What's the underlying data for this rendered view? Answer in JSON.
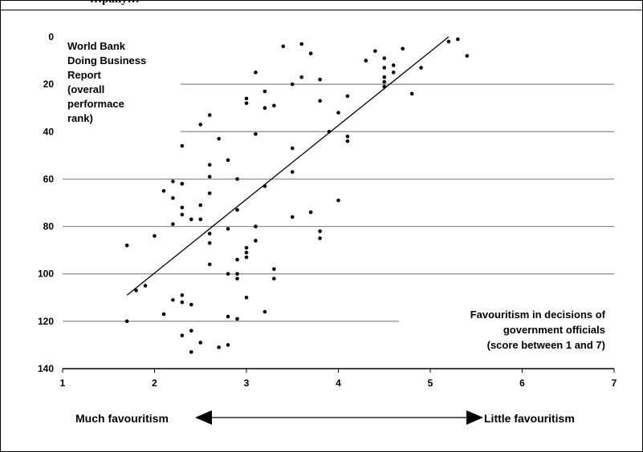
{
  "header": {
    "title_fragment": "…pany…"
  },
  "chart_data": {
    "type": "scatter",
    "title": "",
    "ylabel_lines": [
      "World Bank",
      "Doing Business",
      "Report",
      "(overall",
      "performace",
      "rank)"
    ],
    "xlabel_lines": [
      "Favouritism  in decisions of",
      "government officials",
      "(score between 1 and 7)"
    ],
    "xlim": [
      1,
      7
    ],
    "ylim": [
      0,
      140
    ],
    "y_inverted": true,
    "x_ticks": [
      1,
      2,
      3,
      4,
      5,
      6,
      7
    ],
    "y_ticks": [
      0,
      20,
      40,
      60,
      80,
      100,
      120,
      140
    ],
    "grid": "horizontal",
    "points": [
      [
        5.2,
        2
      ],
      [
        5.3,
        1
      ],
      [
        5.4,
        8
      ],
      [
        4.7,
        5
      ],
      [
        4.6,
        12
      ],
      [
        4.6,
        15
      ],
      [
        4.5,
        9
      ],
      [
        4.5,
        13
      ],
      [
        4.5,
        17
      ],
      [
        4.5,
        19
      ],
      [
        4.5,
        21
      ],
      [
        4.4,
        6
      ],
      [
        4.3,
        10
      ],
      [
        4.9,
        13
      ],
      [
        4.8,
        24
      ],
      [
        3.4,
        4
      ],
      [
        3.6,
        3
      ],
      [
        3.7,
        7
      ],
      [
        3.6,
        17
      ],
      [
        3.5,
        20
      ],
      [
        3.8,
        18
      ],
      [
        3.1,
        15
      ],
      [
        3.0,
        26
      ],
      [
        3.0,
        28
      ],
      [
        3.2,
        23
      ],
      [
        3.2,
        30
      ],
      [
        3.3,
        29
      ],
      [
        3.8,
        27
      ],
      [
        4.1,
        25
      ],
      [
        4.0,
        32
      ],
      [
        3.9,
        40
      ],
      [
        3.1,
        41
      ],
      [
        4.1,
        42
      ],
      [
        4.1,
        44
      ],
      [
        2.6,
        33
      ],
      [
        2.5,
        37
      ],
      [
        2.7,
        43
      ],
      [
        2.3,
        46
      ],
      [
        3.5,
        47
      ],
      [
        2.8,
        52
      ],
      [
        2.6,
        54
      ],
      [
        3.5,
        57
      ],
      [
        2.6,
        59
      ],
      [
        2.9,
        60
      ],
      [
        2.2,
        61
      ],
      [
        2.3,
        62
      ],
      [
        2.3,
        62
      ],
      [
        3.2,
        63
      ],
      [
        2.1,
        65
      ],
      [
        2.6,
        66
      ],
      [
        2.2,
        68
      ],
      [
        4.0,
        69
      ],
      [
        2.5,
        71
      ],
      [
        2.3,
        72
      ],
      [
        2.9,
        73
      ],
      [
        3.7,
        74
      ],
      [
        2.3,
        75
      ],
      [
        3.5,
        76
      ],
      [
        2.4,
        77
      ],
      [
        2.5,
        77
      ],
      [
        2.2,
        79
      ],
      [
        3.1,
        80
      ],
      [
        2.8,
        81
      ],
      [
        3.8,
        82
      ],
      [
        2.6,
        83
      ],
      [
        2.0,
        84
      ],
      [
        3.8,
        85
      ],
      [
        3.1,
        86
      ],
      [
        2.6,
        87
      ],
      [
        1.7,
        88
      ],
      [
        3.0,
        89
      ],
      [
        3.0,
        91
      ],
      [
        3.0,
        93
      ],
      [
        2.9,
        94
      ],
      [
        2.6,
        96
      ],
      [
        3.3,
        98
      ],
      [
        2.8,
        100
      ],
      [
        2.9,
        100
      ],
      [
        2.9,
        102
      ],
      [
        3.3,
        102
      ],
      [
        1.9,
        105
      ],
      [
        1.8,
        107
      ],
      [
        2.3,
        109
      ],
      [
        3.0,
        110
      ],
      [
        2.2,
        111
      ],
      [
        2.3,
        112
      ],
      [
        2.4,
        113
      ],
      [
        3.2,
        116
      ],
      [
        2.1,
        117
      ],
      [
        2.8,
        118
      ],
      [
        2.9,
        119
      ],
      [
        1.7,
        120
      ],
      [
        2.4,
        124
      ],
      [
        2.3,
        126
      ],
      [
        2.5,
        129
      ],
      [
        2.8,
        130
      ],
      [
        2.7,
        131
      ],
      [
        2.4,
        133
      ]
    ],
    "trendline": {
      "x": [
        1.7,
        5.2
      ],
      "y": [
        109,
        0
      ]
    }
  },
  "bottom_axis": {
    "left_label": "Much favouritism",
    "right_label": "Little favouritism"
  }
}
